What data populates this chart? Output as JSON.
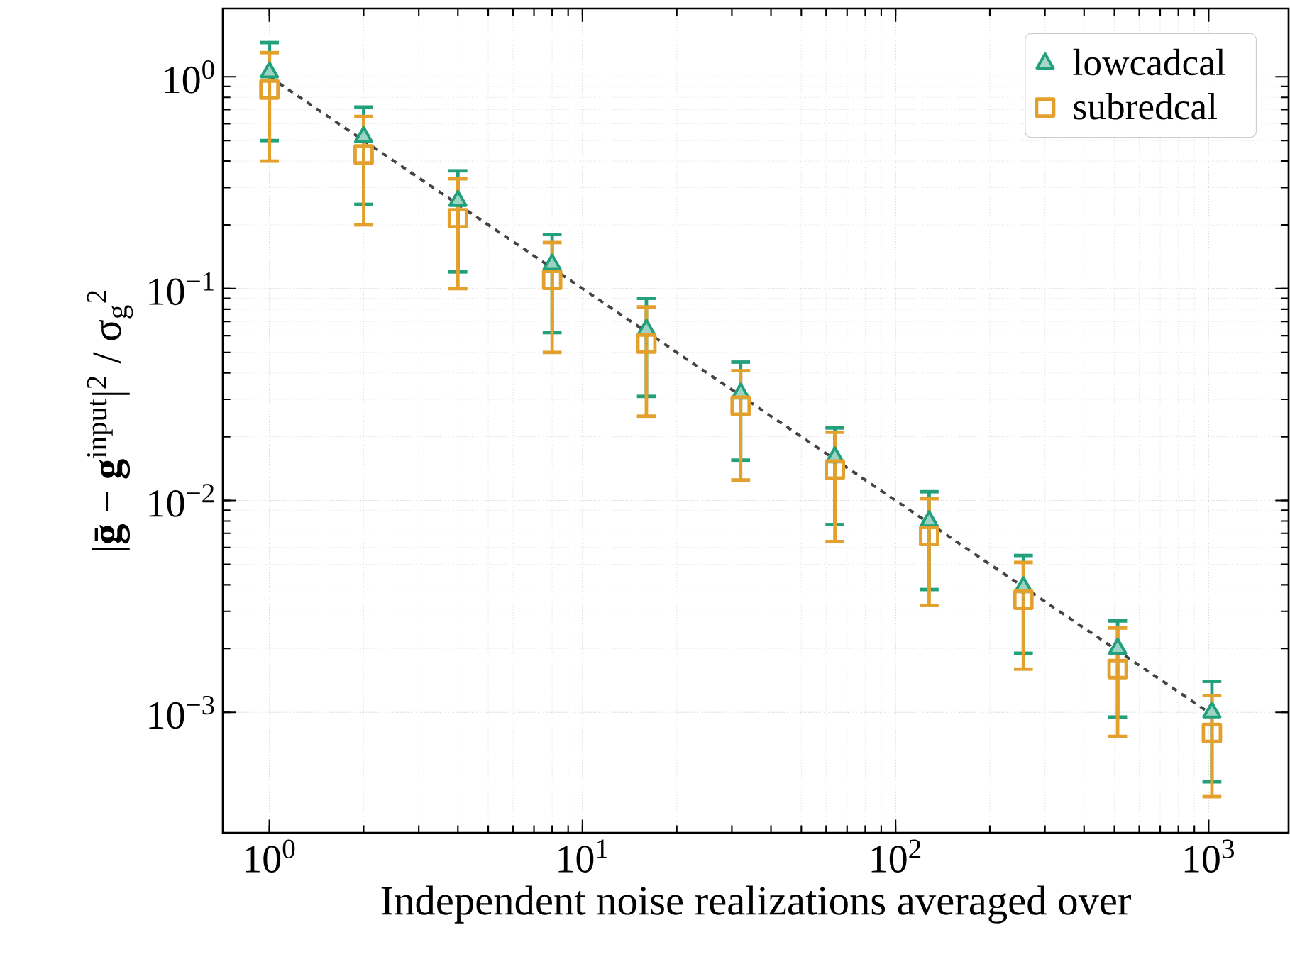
{
  "chart_data": {
    "type": "scatter",
    "xlabel": "Independent noise realizations averaged over",
    "ylabel": "|**ḡ** − **g**$^{input}$|$^{2}$ / σ$_{g}$$^{2}$",
    "log": "xy",
    "grid": true,
    "legend": "top right",
    "x": [
      1,
      2,
      4,
      8,
      16,
      32,
      64,
      128,
      256,
      512,
      1024
    ],
    "xlim": [
      0.71,
      1800
    ],
    "ylim": [
      0.00027,
      2.1
    ],
    "xticks": [
      {
        "value": 1,
        "label": "10$^{0}$"
      },
      {
        "value": 10,
        "label": "10$^{1}$"
      },
      {
        "value": 100,
        "label": "10$^{2}$"
      },
      {
        "value": 1000,
        "label": "10$^{3}$"
      }
    ],
    "yticks": [
      {
        "value": 0.001,
        "label": "10$^{−3}$"
      },
      {
        "value": 0.01,
        "label": "10$^{−2}$"
      },
      {
        "value": 0.1,
        "label": "10$^{−1}$"
      },
      {
        "value": 1,
        "label": "10$^{0}$"
      }
    ],
    "series": [
      {
        "type": "line",
        "color": "#444444",
        "line_style": "dashed",
        "marker": "none",
        "x": [
          1,
          1024
        ],
        "values": [
          1,
          0.000977
        ]
      },
      {
        "name": "lowcadcal",
        "color": "#22a07c",
        "marker": "triangle",
        "values": [
          1.05,
          0.52,
          0.26,
          0.13,
          0.064,
          0.032,
          0.016,
          0.008,
          0.0039,
          0.002,
          0.001
        ],
        "errors": [
          [
            0.5,
            1.45
          ],
          [
            0.25,
            0.72
          ],
          [
            0.12,
            0.36
          ],
          [
            0.062,
            0.18
          ],
          [
            0.031,
            0.09
          ],
          [
            0.0155,
            0.045
          ],
          [
            0.0077,
            0.022
          ],
          [
            0.0038,
            0.011
          ],
          [
            0.0019,
            0.0055
          ],
          [
            0.00095,
            0.0027
          ],
          [
            0.00047,
            0.0014
          ]
        ]
      },
      {
        "name": "subredcal",
        "color": "#e3a02c",
        "marker": "square",
        "values": [
          0.87,
          0.43,
          0.215,
          0.11,
          0.055,
          0.028,
          0.014,
          0.0068,
          0.0034,
          0.0016,
          0.0008
        ],
        "errors": [
          [
            0.4,
            1.3
          ],
          [
            0.2,
            0.65
          ],
          [
            0.1,
            0.33
          ],
          [
            0.05,
            0.165
          ],
          [
            0.025,
            0.082
          ],
          [
            0.0125,
            0.041
          ],
          [
            0.0064,
            0.021
          ],
          [
            0.0032,
            0.0102
          ],
          [
            0.0016,
            0.0051
          ],
          [
            0.00077,
            0.0025
          ],
          [
            0.0004,
            0.0012
          ]
        ]
      }
    ]
  }
}
